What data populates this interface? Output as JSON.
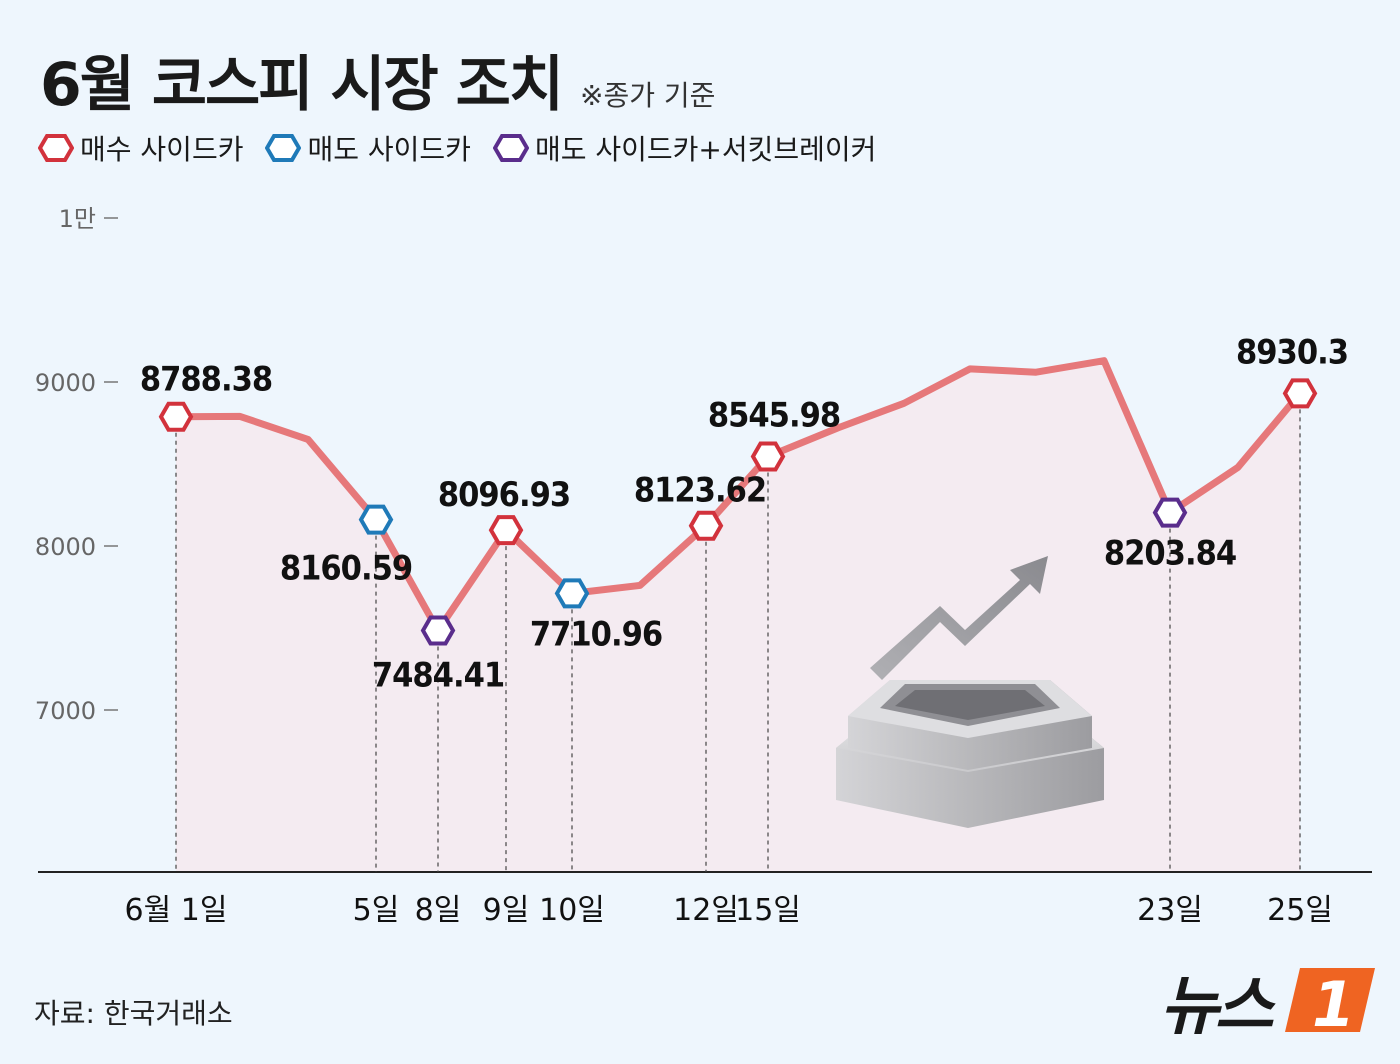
{
  "title": "6월 코스피 시장 조치",
  "note": "※종가 기준",
  "legend": [
    {
      "label": "매수 사이드카",
      "color": "#d2323c"
    },
    {
      "label": "매도 사이드카",
      "color": "#1f7ab8"
    },
    {
      "label": "매도 사이드카+서킷브레이커",
      "color": "#5a2d8c"
    }
  ],
  "source": "자료: 한국거래소",
  "logo": {
    "text": "뉴스",
    "mark": "1",
    "mark_color": "#ef6422"
  },
  "chart_data": {
    "type": "line",
    "ylim": [
      6000,
      10000
    ],
    "yticks": [
      {
        "value": 10000,
        "label": "1만"
      },
      {
        "value": 9000,
        "label": "9000"
      },
      {
        "value": 8000,
        "label": "8000"
      },
      {
        "value": 7000,
        "label": "7000"
      }
    ],
    "line_color": "#e6787a",
    "fill_color": "#f4e9ef",
    "series": [
      {
        "points": [
          {
            "day": 1,
            "value": 8788.38,
            "marker": "buy",
            "label": "8788.38",
            "xlabel": "6월 1일"
          },
          {
            "day": 2,
            "value": 8790
          },
          {
            "day": 3,
            "value": 8650
          },
          {
            "day": 4,
            "value": 8160.59,
            "marker": "sell",
            "label": "8160.59",
            "xlabel": "5일"
          },
          {
            "day": 5,
            "value": 7484.41,
            "marker": "cb",
            "label": "7484.41",
            "xlabel": "8일"
          },
          {
            "day": 6,
            "value": 8096.93,
            "marker": "buy",
            "label": "8096.93",
            "xlabel": "9일"
          },
          {
            "day": 7,
            "value": 7710.96,
            "marker": "sell",
            "label": "7710.96",
            "xlabel": "10일"
          },
          {
            "day": 8,
            "value": 7760
          },
          {
            "day": 9,
            "value": 8123.62,
            "marker": "buy",
            "label": "8123.62",
            "xlabel": "12일"
          },
          {
            "day": 10,
            "value": 8545.98,
            "marker": "buy",
            "label": "8545.98",
            "xlabel": "15일"
          },
          {
            "day": 11,
            "value": 8720
          },
          {
            "day": 12,
            "value": 8870
          },
          {
            "day": 13,
            "value": 9080
          },
          {
            "day": 14,
            "value": 9060
          },
          {
            "day": 15,
            "value": 9130
          },
          {
            "day": 16,
            "value": 8203.84,
            "marker": "cb",
            "label": "8203.84",
            "xlabel": "23일"
          },
          {
            "day": 17,
            "value": 8480
          },
          {
            "day": 18,
            "value": 8930.3,
            "marker": "buy",
            "label": "8930.3",
            "xlabel": "25일"
          }
        ]
      }
    ]
  }
}
